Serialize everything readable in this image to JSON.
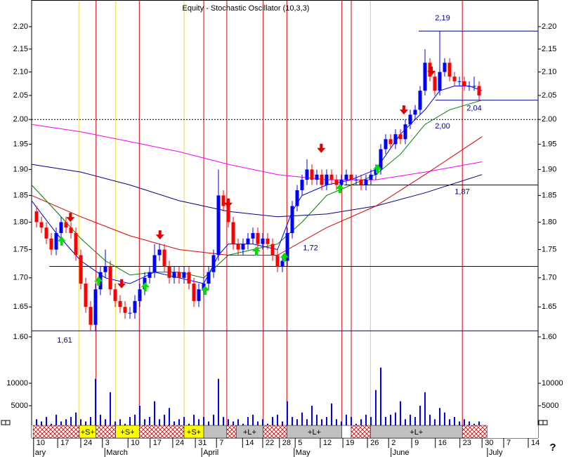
{
  "chart_data": {
    "type": "candlestick",
    "title": "Equity - Stochastic Oscillator (10,3,3)",
    "help_label": "?",
    "log_scale": true,
    "xlim": [
      -1,
      102
    ],
    "ylim": [
      1.577,
      2.261
    ],
    "yticks": [
      {
        "value": 1.6,
        "label": "1.60"
      },
      {
        "value": 1.65,
        "label": "1.65"
      },
      {
        "value": 1.7,
        "label": "1.70"
      },
      {
        "value": 1.75,
        "label": "1.75"
      },
      {
        "value": 1.8,
        "label": "1.80"
      },
      {
        "value": 1.85,
        "label": "1.85"
      },
      {
        "value": 1.9,
        "label": "1.90"
      },
      {
        "value": 1.95,
        "label": "1.95"
      },
      {
        "value": 2.0,
        "label": "2.00"
      },
      {
        "value": 2.05,
        "label": "2.05"
      },
      {
        "value": 2.1,
        "label": "2.10"
      },
      {
        "value": 2.15,
        "label": "2.15"
      },
      {
        "value": 2.2,
        "label": "2.20"
      }
    ],
    "volume_ylim": [
      0,
      16400
    ],
    "volume_ticks": [
      5000,
      10000
    ],
    "xticks": [
      {
        "value": -0.6,
        "label": "10"
      },
      {
        "value": 4.3,
        "label": "17"
      },
      {
        "value": 9,
        "label": "24"
      },
      {
        "value": 13.4,
        "label": "3"
      },
      {
        "value": 18.6,
        "label": "10"
      },
      {
        "value": 23.1,
        "label": "17"
      },
      {
        "value": 27.7,
        "label": "24"
      },
      {
        "value": 32.3,
        "label": "31"
      },
      {
        "value": 36.6,
        "label": "7"
      },
      {
        "value": 41.9,
        "label": "14"
      },
      {
        "value": 46,
        "label": "22"
      },
      {
        "value": 49.4,
        "label": "28"
      },
      {
        "value": 52.6,
        "label": "5"
      },
      {
        "value": 57.7,
        "label": "12"
      },
      {
        "value": 62.3,
        "label": "19"
      },
      {
        "value": 67.3,
        "label": "26"
      },
      {
        "value": 71.6,
        "label": "2"
      },
      {
        "value": 76.3,
        "label": "9"
      },
      {
        "value": 81.1,
        "label": "16"
      },
      {
        "value": 86.1,
        "label": "23"
      },
      {
        "value": 90.6,
        "label": "30"
      },
      {
        "value": 95,
        "label": "7"
      },
      {
        "value": 100,
        "label": "14"
      }
    ],
    "month_labels": [
      {
        "value": -0.6,
        "label": "ary"
      },
      {
        "value": 13.9,
        "label": "March"
      },
      {
        "value": 33.6,
        "label": "April"
      },
      {
        "value": 52.4,
        "label": "May"
      },
      {
        "value": 72.1,
        "label": "June"
      },
      {
        "value": 91.7,
        "label": "July"
      }
    ],
    "up_color": "#0000ff",
    "down_color": "#ff0000",
    "volume_color": "#0000ff",
    "open": [
      1.82,
      1.8,
      1.79,
      1.77,
      1.75,
      1.78,
      1.8,
      1.79,
      1.78,
      1.74,
      1.69,
      1.65,
      1.62,
      1.68,
      1.71,
      1.72,
      1.68,
      1.66,
      1.65,
      1.64,
      1.64,
      1.66,
      1.68,
      1.7,
      1.71,
      1.74,
      1.75,
      1.72,
      1.7,
      1.71,
      1.7,
      1.71,
      1.69,
      1.66,
      1.68,
      1.69,
      1.71,
      1.74,
      1.85,
      1.83,
      1.8,
      1.76,
      1.75,
      1.76,
      1.77,
      1.78,
      1.76,
      1.77,
      1.76,
      1.74,
      1.72,
      1.73,
      1.78,
      1.83,
      1.86,
      1.88,
      1.9,
      1.88,
      1.89,
      1.87,
      1.89,
      1.88,
      1.87,
      1.88,
      1.89,
      1.88,
      1.88,
      1.87,
      1.88,
      1.89,
      1.9,
      1.94,
      1.96,
      1.95,
      1.97,
      1.96,
      1.99,
      2.01,
      2.02,
      2.06,
      2.12,
      2.09,
      2.06,
      2.1,
      2.12,
      2.09,
      2.08,
      2.08,
      2.07,
      2.07,
      2.07
    ],
    "high": [
      1.83,
      1.81,
      1.8,
      1.78,
      1.79,
      1.81,
      1.81,
      1.8,
      1.79,
      1.75,
      1.7,
      1.66,
      1.69,
      1.72,
      1.75,
      1.73,
      1.69,
      1.67,
      1.66,
      1.65,
      1.67,
      1.69,
      1.71,
      1.72,
      1.76,
      1.76,
      1.76,
      1.73,
      1.72,
      1.72,
      1.72,
      1.72,
      1.7,
      1.69,
      1.7,
      1.72,
      1.75,
      1.9,
      1.86,
      1.84,
      1.81,
      1.77,
      1.77,
      1.78,
      1.79,
      1.79,
      1.78,
      1.78,
      1.77,
      1.75,
      1.74,
      1.79,
      1.84,
      1.87,
      1.89,
      1.92,
      1.91,
      1.9,
      1.9,
      1.9,
      1.9,
      1.89,
      1.89,
      1.9,
      1.9,
      1.89,
      1.89,
      1.89,
      1.9,
      1.91,
      1.95,
      1.97,
      1.97,
      1.98,
      1.98,
      2.0,
      2.02,
      2.03,
      2.07,
      2.15,
      2.13,
      2.1,
      2.19,
      2.13,
      2.13,
      2.1,
      2.09,
      2.09,
      2.08,
      2.09,
      2.08
    ],
    "low": [
      1.79,
      1.78,
      1.76,
      1.74,
      1.74,
      1.77,
      1.78,
      1.77,
      1.73,
      1.68,
      1.64,
      1.61,
      1.61,
      1.67,
      1.7,
      1.67,
      1.65,
      1.64,
      1.63,
      1.63,
      1.63,
      1.65,
      1.67,
      1.69,
      1.7,
      1.73,
      1.71,
      1.69,
      1.69,
      1.69,
      1.69,
      1.68,
      1.65,
      1.65,
      1.67,
      1.68,
      1.7,
      1.73,
      1.82,
      1.79,
      1.75,
      1.74,
      1.74,
      1.75,
      1.76,
      1.75,
      1.75,
      1.75,
      1.73,
      1.71,
      1.71,
      1.72,
      1.77,
      1.82,
      1.85,
      1.87,
      1.87,
      1.87,
      1.86,
      1.86,
      1.87,
      1.86,
      1.86,
      1.87,
      1.87,
      1.87,
      1.86,
      1.86,
      1.87,
      1.88,
      1.89,
      1.93,
      1.94,
      1.94,
      1.95,
      1.95,
      1.98,
      2.0,
      2.01,
      2.05,
      2.08,
      2.05,
      2.05,
      2.09,
      2.08,
      2.07,
      2.07,
      2.06,
      2.06,
      2.06,
      2.04
    ],
    "close": [
      1.8,
      1.79,
      1.77,
      1.75,
      1.78,
      1.8,
      1.79,
      1.78,
      1.74,
      1.69,
      1.65,
      1.62,
      1.68,
      1.71,
      1.72,
      1.68,
      1.66,
      1.65,
      1.64,
      1.64,
      1.66,
      1.68,
      1.7,
      1.71,
      1.74,
      1.75,
      1.72,
      1.7,
      1.71,
      1.7,
      1.71,
      1.69,
      1.66,
      1.68,
      1.69,
      1.71,
      1.74,
      1.85,
      1.83,
      1.8,
      1.76,
      1.75,
      1.76,
      1.77,
      1.78,
      1.76,
      1.77,
      1.76,
      1.74,
      1.72,
      1.73,
      1.78,
      1.83,
      1.86,
      1.88,
      1.9,
      1.88,
      1.89,
      1.87,
      1.89,
      1.88,
      1.87,
      1.88,
      1.89,
      1.88,
      1.88,
      1.87,
      1.88,
      1.89,
      1.9,
      1.94,
      1.96,
      1.95,
      1.97,
      1.96,
      1.99,
      2.01,
      2.02,
      2.06,
      2.12,
      2.09,
      2.06,
      2.1,
      2.12,
      2.09,
      2.08,
      2.08,
      2.07,
      2.07,
      2.07,
      2.05
    ],
    "volume": [
      2000,
      1500,
      2500,
      1000,
      3000,
      1500,
      2000,
      2500,
      3500,
      2000,
      1500,
      2500,
      11000,
      3000,
      2000,
      8000,
      1500,
      2000,
      1000,
      2500,
      3000,
      5000,
      2000,
      2500,
      6000,
      2000,
      3000,
      4500,
      1500,
      2000,
      2500,
      1000,
      3000,
      2000,
      2500,
      1500,
      3000,
      11000,
      2500,
      2000,
      1500,
      2000,
      1000,
      2500,
      3000,
      1500,
      2000,
      1000,
      2500,
      3000,
      1500,
      6000,
      2500,
      2000,
      3500,
      2000,
      5000,
      3000,
      2000,
      2500,
      5500,
      2000,
      1500,
      3000,
      2500,
      1000,
      2000,
      3000,
      2500,
      8500,
      13500,
      2500,
      3000,
      3500,
      6000,
      2000,
      3000,
      2500,
      5000,
      8000,
      3000,
      2000,
      4500,
      3500,
      2000,
      2500,
      1500,
      2000,
      1500,
      1000,
      1500
    ],
    "overlays": [
      {
        "color": "#000080",
        "x": [
          -1,
          9,
          19,
          29,
          39,
          49,
          59,
          69,
          79,
          90.6
        ],
        "values": [
          1.91,
          1.895,
          1.87,
          1.84,
          1.82,
          1.81,
          1.815,
          1.83,
          1.855,
          1.89
        ]
      },
      {
        "color": "#ff00ff",
        "x": [
          -1,
          9,
          19,
          29,
          39,
          49,
          59,
          69,
          79,
          90.6
        ],
        "values": [
          1.99,
          1.975,
          1.955,
          1.935,
          1.91,
          1.89,
          1.88,
          1.88,
          1.895,
          1.915
        ]
      },
      {
        "color": "#e00000",
        "x": [
          -1,
          9,
          19,
          29,
          39,
          49,
          59,
          69,
          79,
          90.6
        ],
        "values": [
          1.85,
          1.81,
          1.775,
          1.75,
          1.74,
          1.74,
          1.79,
          1.83,
          1.89,
          1.965
        ]
      },
      {
        "color": "#008000",
        "x": [
          -1,
          4,
          9,
          14,
          19,
          24,
          29,
          34,
          39,
          44,
          49,
          54,
          59,
          64,
          69,
          74,
          79,
          84,
          90.6
        ],
        "values": [
          1.87,
          1.82,
          1.77,
          1.73,
          1.705,
          1.71,
          1.71,
          1.7,
          1.74,
          1.75,
          1.76,
          1.8,
          1.85,
          1.87,
          1.89,
          1.93,
          1.99,
          2.02,
          2.04
        ]
      },
      {
        "color": "#0000ff",
        "x": [
          -1,
          4,
          9,
          14,
          19,
          24,
          29,
          34,
          37,
          39,
          44,
          49,
          52,
          54,
          59,
          64,
          69,
          74,
          79,
          82,
          85,
          88,
          90.6
        ],
        "values": [
          1.84,
          1.78,
          1.73,
          1.7,
          1.69,
          1.71,
          1.7,
          1.69,
          1.74,
          1.76,
          1.76,
          1.75,
          1.82,
          1.85,
          1.87,
          1.88,
          1.9,
          1.97,
          2.02,
          2.06,
          2.07,
          2.07,
          2.06
        ]
      }
    ],
    "levels": [
      {
        "value": 1.61,
        "label": "1,61",
        "start": -1
      },
      {
        "value": 1.72,
        "label": "1,72",
        "start": 2.6
      },
      {
        "value": 1.87,
        "label": "1,87",
        "start": 62.6
      },
      {
        "value": 2.19,
        "label": "2,19",
        "start": 77.7
      },
      {
        "value": 2.04,
        "label": "2,04",
        "start": 81.1
      },
      {
        "value": 2.0,
        "label": "2,00",
        "start": -1,
        "dotted": true
      }
    ],
    "signal_lines": [
      {
        "x": 8.6,
        "color": "#f0e040"
      },
      {
        "x": 16.1,
        "color": "#f0e040"
      },
      {
        "x": 30,
        "color": "#f0e040"
      },
      {
        "x": 67.9,
        "color": "#c8c8c8"
      },
      {
        "x": 12.1,
        "color": "#e00000"
      },
      {
        "x": 20.9,
        "color": "#e00000"
      },
      {
        "x": 34,
        "color": "#e00000"
      },
      {
        "x": 38.7,
        "color": "#e00000"
      },
      {
        "x": 46.1,
        "color": "#e00000"
      },
      {
        "x": 50.9,
        "color": "#e00000"
      },
      {
        "x": 62.1,
        "color": "#e00000"
      },
      {
        "x": 64,
        "color": "#e00000"
      },
      {
        "x": 86.6,
        "color": "#e00000"
      }
    ],
    "sell_signals": {
      "color": "#e00000",
      "x": [
        6.9,
        17.3,
        25.1,
        39,
        57.9,
        74.7,
        80.3
      ],
      "values": [
        1.808,
        1.689,
        1.776,
        1.835,
        1.941,
        2.019,
        2.101
      ]
    },
    "buy_signals": {
      "color": "#00e000",
      "x": [
        5.1,
        12.6,
        22.1,
        34.3,
        44.7,
        50.4,
        61.7,
        69.3
      ],
      "values": [
        1.766,
        1.695,
        1.685,
        1.679,
        1.748,
        1.737,
        1.864,
        1.902
      ]
    },
    "strip": [
      {
        "start": -0.7,
        "end": 8.7,
        "hatched": true
      },
      {
        "start": 8.7,
        "end": 12.1,
        "label": "+S+",
        "fill": "#ffff00"
      },
      {
        "start": 12.1,
        "end": 16.1,
        "hatched": true
      },
      {
        "start": 16.1,
        "end": 20.9,
        "label": "+S+",
        "fill": "#ffff00"
      },
      {
        "start": 20.9,
        "end": 30,
        "hatched": true
      },
      {
        "start": 30,
        "end": 34,
        "label": "+S+",
        "fill": "#ffff00"
      },
      {
        "start": 34,
        "end": 38.7,
        "fill": "#c0c0c0"
      },
      {
        "start": 38.7,
        "end": 40.6,
        "hatched": true
      },
      {
        "start": 40.6,
        "end": 46.1,
        "label": "+L+",
        "fill": "#c0c0c0"
      },
      {
        "start": 46.1,
        "end": 50.9,
        "hatched": true
      },
      {
        "start": 50.9,
        "end": 62.1,
        "label": "+L+",
        "fill": "#c0c0c0"
      },
      {
        "start": 62.1,
        "end": 64,
        "fill": "#ffffff"
      },
      {
        "start": 64,
        "end": 67.9,
        "hatched": true
      },
      {
        "start": 67.9,
        "end": 86.6,
        "label": "+L+",
        "fill": "#c0c0c0"
      },
      {
        "start": 86.6,
        "end": 91.6,
        "hatched": true
      }
    ]
  }
}
